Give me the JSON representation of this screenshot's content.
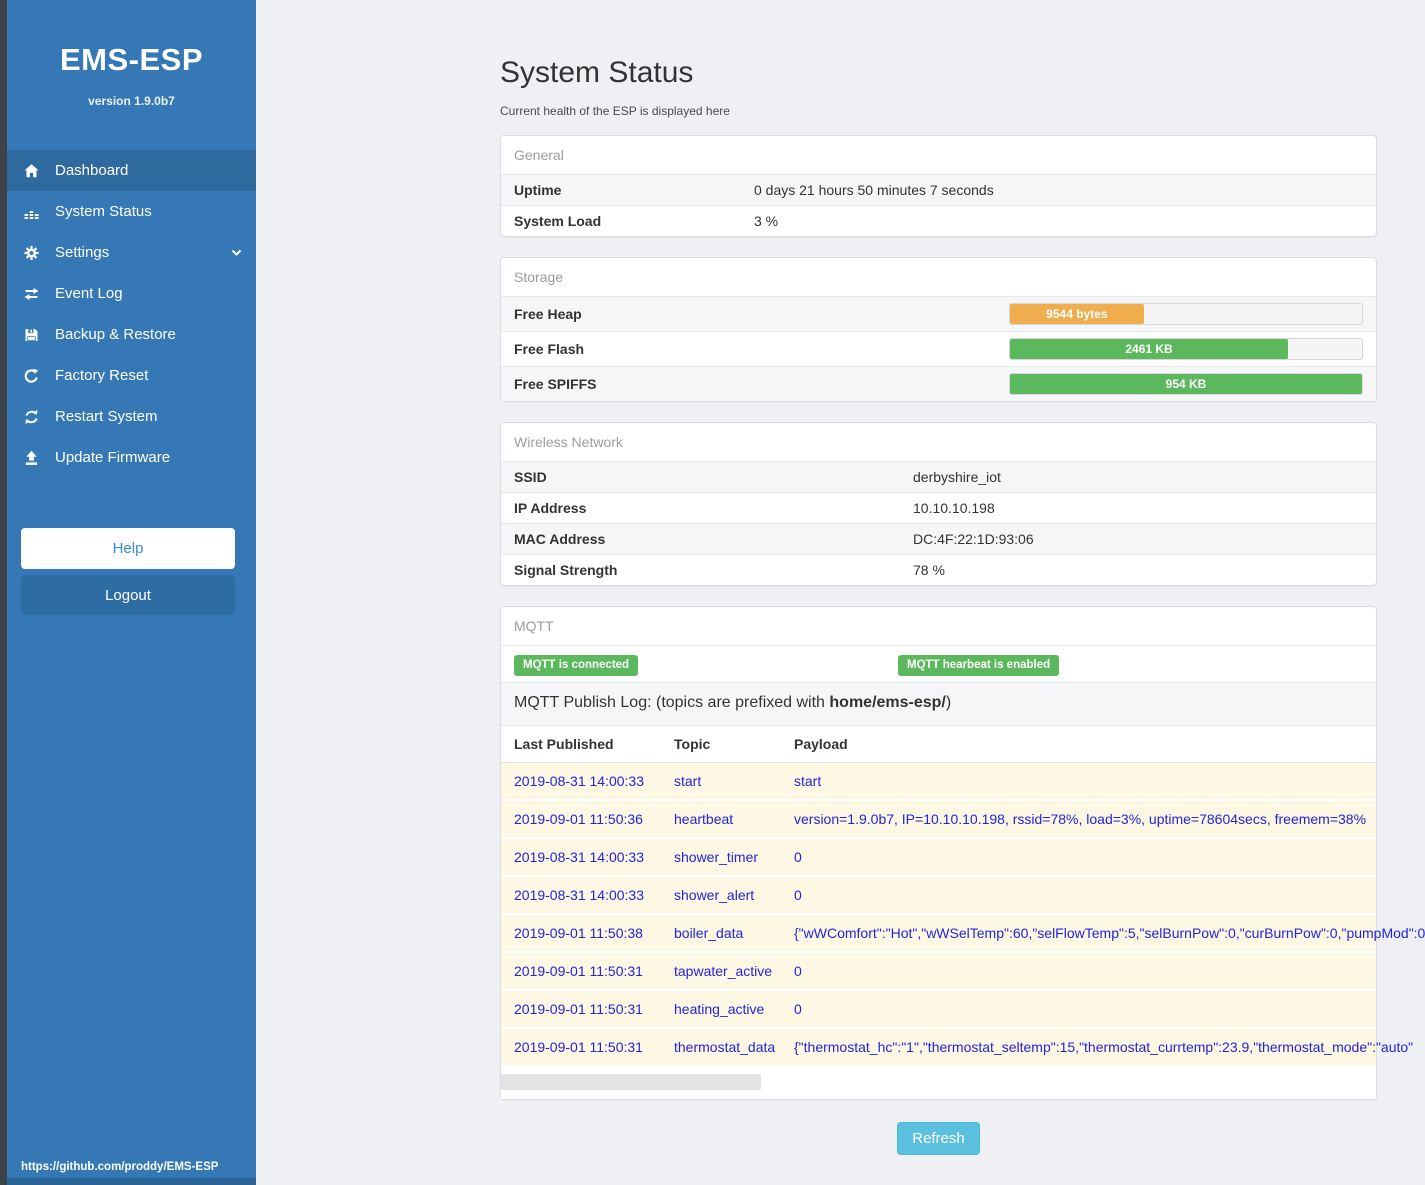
{
  "sidebar": {
    "title": "EMS-ESP",
    "version": "version 1.9.0b7",
    "items": [
      {
        "label": "Dashboard",
        "icon": "home-icon",
        "active": true,
        "has_submenu": false
      },
      {
        "label": "System Status",
        "icon": "system-status-icon",
        "active": false,
        "has_submenu": false
      },
      {
        "label": "Settings",
        "icon": "gear-icon",
        "active": false,
        "has_submenu": true
      },
      {
        "label": "Event Log",
        "icon": "event-log-icon",
        "active": false,
        "has_submenu": false
      },
      {
        "label": "Backup & Restore",
        "icon": "backup-icon",
        "active": false,
        "has_submenu": false
      },
      {
        "label": "Factory Reset",
        "icon": "factory-reset-icon",
        "active": false,
        "has_submenu": false
      },
      {
        "label": "Restart System",
        "icon": "restart-icon",
        "active": false,
        "has_submenu": false
      },
      {
        "label": "Update Firmware",
        "icon": "upload-icon",
        "active": false,
        "has_submenu": false
      }
    ],
    "help_label": "Help",
    "logout_label": "Logout",
    "footer_link": "https://github.com/proddy/EMS-ESP"
  },
  "header": {
    "title": "System Status",
    "subtitle": "Current health of the ESP is displayed here"
  },
  "panels": {
    "general": {
      "title": "General",
      "rows": [
        {
          "label": "Uptime",
          "value": "0 days 21 hours 50 minutes 7 seconds"
        },
        {
          "label": "System Load",
          "value": "3 %"
        }
      ]
    },
    "storage": {
      "title": "Storage",
      "rows": [
        {
          "label": "Free Heap",
          "bar_label": "9544 bytes",
          "percent": 38,
          "color": "#f0ad4e"
        },
        {
          "label": "Free Flash",
          "bar_label": "2461 KB",
          "percent": 79,
          "color": "#5cb85c"
        },
        {
          "label": "Free SPIFFS",
          "bar_label": "954 KB",
          "percent": 100,
          "color": "#5cb85c"
        }
      ]
    },
    "wireless": {
      "title": "Wireless Network",
      "rows": [
        {
          "label": "SSID",
          "value": "derbyshire_iot"
        },
        {
          "label": "IP Address",
          "value": "10.10.10.198"
        },
        {
          "label": "MAC Address",
          "value": "DC:4F:22:1D:93:06"
        },
        {
          "label": "Signal Strength",
          "value": "78 %"
        }
      ]
    },
    "mqtt": {
      "title": "MQTT",
      "badges": [
        "MQTT is connected",
        "MQTT hearbeat is enabled"
      ],
      "publish_log": {
        "prefix": "MQTT Publish Log: (topics are prefixed with ",
        "bold": "home/ems-esp/",
        "suffix": ")"
      },
      "table": {
        "headers": [
          "Last Published",
          "Topic",
          "Payload"
        ],
        "rows": [
          {
            "time": "2019-08-31 14:00:33",
            "topic": "start",
            "payload": "start"
          },
          {
            "time": "2019-09-01 11:50:36",
            "topic": "heartbeat",
            "payload": "version=1.9.0b7, IP=10.10.10.198, rssid=78%, load=3%, uptime=78604secs, freemem=38%"
          },
          {
            "time": "2019-08-31 14:00:33",
            "topic": "shower_timer",
            "payload": "0"
          },
          {
            "time": "2019-08-31 14:00:33",
            "topic": "shower_alert",
            "payload": "0"
          },
          {
            "time": "2019-09-01 11:50:38",
            "topic": "boiler_data",
            "payload": "{\"wWComfort\":\"Hot\",\"wWSelTemp\":60,\"selFlowTemp\":5,\"selBurnPow\":0,\"curBurnPow\":0,\"pumpMod\":0"
          },
          {
            "time": "2019-09-01 11:50:31",
            "topic": "tapwater_active",
            "payload": "0"
          },
          {
            "time": "2019-09-01 11:50:31",
            "topic": "heating_active",
            "payload": "0"
          },
          {
            "time": "2019-09-01 11:50:31",
            "topic": "thermostat_data",
            "payload": "{\"thermostat_hc\":\"1\",\"thermostat_seltemp\":15,\"thermostat_currtemp\":23.9,\"thermostat_mode\":\"auto\""
          }
        ]
      }
    }
  },
  "refresh_label": "Refresh",
  "colors": {
    "sidebar": "#3578b5",
    "sidebar_active": "#2e6a9e",
    "badge_green": "#5cb85c",
    "bar_orange": "#f0ad4e",
    "bar_green": "#5cb85c",
    "refresh_blue": "#5bc0de",
    "log_row_bg": "#fcf8e3",
    "log_text_blue": "#2323df"
  }
}
